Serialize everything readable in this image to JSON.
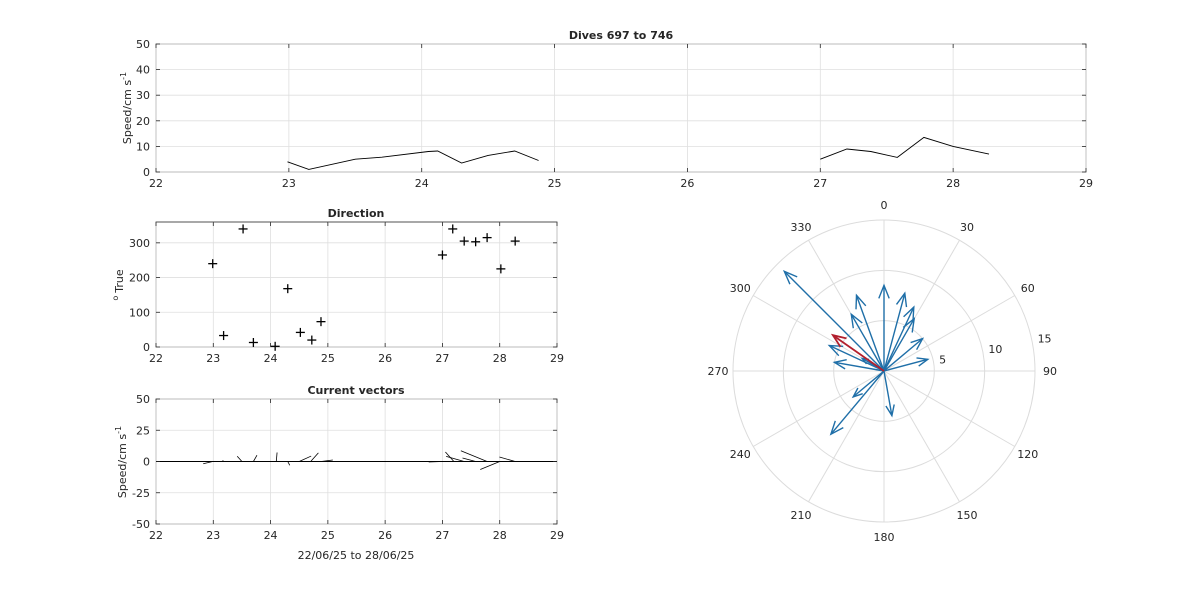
{
  "colors": {
    "vector": "#1f6fa8",
    "mean_vector": "#b2202e",
    "line": "#000000",
    "grid": "#dfdfdf"
  },
  "chart_data": [
    {
      "id": "speed",
      "type": "line",
      "title": "Dives 697 to 746",
      "ylabel": "Speed/cm s",
      "ylabel_sup": "-1",
      "xlabel": "",
      "xlim": [
        22,
        29
      ],
      "ylim": [
        0,
        50
      ],
      "xticks": [
        22,
        23,
        24,
        25,
        26,
        27,
        28,
        29
      ],
      "yticks": [
        0,
        10,
        20,
        30,
        40,
        50
      ],
      "grid": true,
      "segments": [
        [
          [
            22.99,
            4
          ],
          [
            23.15,
            1
          ],
          [
            23.5,
            5
          ],
          [
            23.7,
            5.8
          ],
          [
            24.05,
            8
          ],
          [
            24.12,
            8.2
          ],
          [
            24.3,
            3.5
          ],
          [
            24.5,
            6.5
          ],
          [
            24.7,
            8.2
          ],
          [
            24.88,
            4.5
          ]
        ],
        [
          [
            27.0,
            5
          ],
          [
            27.2,
            9
          ],
          [
            27.38,
            8
          ],
          [
            27.58,
            5.7
          ],
          [
            27.78,
            13.5
          ],
          [
            28.0,
            10
          ],
          [
            28.27,
            7
          ]
        ]
      ]
    },
    {
      "id": "direction",
      "type": "scatter",
      "title": "Direction",
      "ylabel": "True",
      "ylabel_prefix": "o",
      "xlabel": "",
      "xlim": [
        22,
        29
      ],
      "ylim": [
        0,
        360
      ],
      "xticks": [
        22,
        23,
        24,
        25,
        26,
        27,
        28,
        29
      ],
      "yticks": [
        0,
        100,
        200,
        300
      ],
      "grid": true,
      "points": [
        [
          22.99,
          240
        ],
        [
          23.18,
          33
        ],
        [
          23.52,
          340
        ],
        [
          23.7,
          13
        ],
        [
          24.08,
          2
        ],
        [
          24.3,
          168
        ],
        [
          24.52,
          42
        ],
        [
          24.72,
          20
        ],
        [
          24.88,
          73
        ],
        [
          27.0,
          265
        ],
        [
          27.18,
          340
        ],
        [
          27.38,
          305
        ],
        [
          27.58,
          303
        ],
        [
          27.78,
          315
        ],
        [
          28.02,
          225
        ],
        [
          28.27,
          305
        ]
      ]
    },
    {
      "id": "vectors",
      "type": "line",
      "title": "Current vectors",
      "ylabel": "Speed/cm s",
      "ylabel_sup": "-1",
      "xlabel": "22/06/25 to 28/06/25",
      "xlim": [
        22,
        29
      ],
      "ylim": [
        -50,
        50
      ],
      "xticks": [
        22,
        23,
        24,
        25,
        26,
        27,
        28,
        29
      ],
      "yticks": [
        -50,
        -25,
        0,
        25,
        50
      ],
      "grid": true,
      "sticks": [
        [
          22.99,
          4,
          240
        ],
        [
          23.15,
          1,
          33
        ],
        [
          23.5,
          5,
          340
        ],
        [
          23.7,
          5.8,
          13
        ],
        [
          24.1,
          8,
          2
        ],
        [
          24.3,
          3.5,
          168
        ],
        [
          24.5,
          6.5,
          42
        ],
        [
          24.7,
          8.2,
          20
        ],
        [
          24.88,
          4.5,
          73
        ],
        [
          27.0,
          5,
          265
        ],
        [
          27.2,
          9,
          340
        ],
        [
          27.38,
          8,
          305
        ],
        [
          27.58,
          5.7,
          303
        ],
        [
          27.78,
          13.5,
          315
        ],
        [
          28.0,
          10,
          225
        ],
        [
          28.27,
          7,
          305
        ]
      ]
    },
    {
      "id": "polar",
      "type": "compass",
      "rticks": [
        5,
        10,
        15
      ],
      "rmax": 15,
      "angle_ticks": [
        0,
        30,
        60,
        90,
        120,
        150,
        180,
        210,
        240,
        270,
        300,
        330
      ],
      "vectors": [
        [
          14,
          315
        ],
        [
          6.5,
          330
        ],
        [
          8,
          340
        ],
        [
          8.5,
          0
        ],
        [
          8,
          15
        ],
        [
          7,
          25
        ],
        [
          6,
          30
        ],
        [
          5,
          50
        ],
        [
          4.5,
          75
        ],
        [
          5,
          280
        ],
        [
          2.5,
          300
        ],
        [
          4,
          230
        ],
        [
          8.2,
          220
        ],
        [
          4.5,
          170
        ],
        [
          6,
          295
        ]
      ],
      "mean_vector": [
        6.2,
        305
      ]
    }
  ]
}
